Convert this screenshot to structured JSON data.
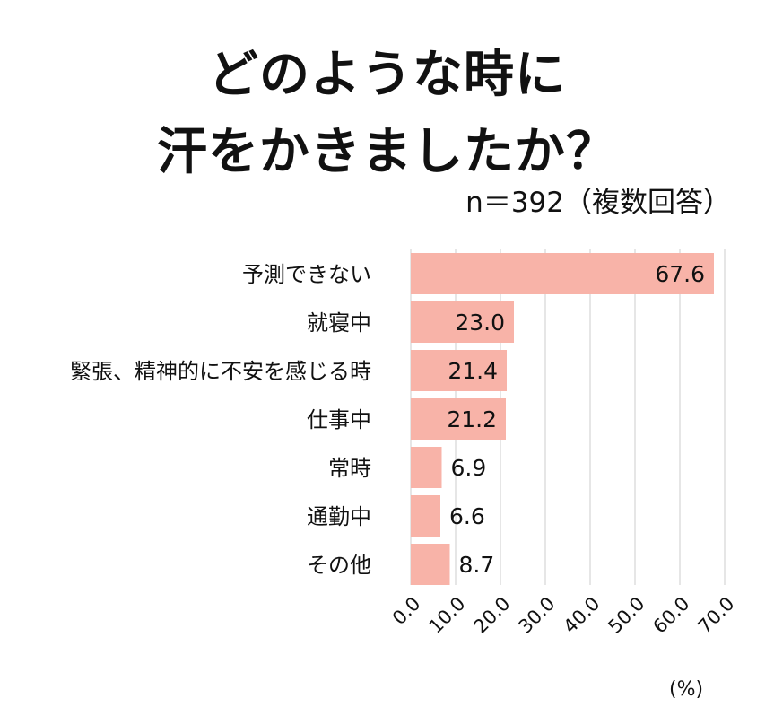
{
  "header": {
    "title_line1": "どのような時に",
    "title_line2": "汗をかきましたか？",
    "subtitle": "n＝392（複数回答）"
  },
  "colors": {
    "bar": "#f8b3a8",
    "grid": "#cccccc",
    "text": "#111111"
  },
  "chart_data": {
    "type": "bar",
    "orientation": "horizontal",
    "categories": [
      "予測できない",
      "就寝中",
      "緊張、精神的に不安を感じる時",
      "仕事中",
      "常時",
      "通勤中",
      "その他"
    ],
    "values": [
      67.6,
      23.0,
      21.4,
      21.2,
      6.9,
      6.6,
      8.7
    ],
    "value_labels": [
      "67.6",
      "23.0",
      "21.4",
      "21.2",
      "6.9",
      "6.6",
      "8.7"
    ],
    "xlim": [
      0,
      70
    ],
    "ticks": [
      "0.0",
      "10.0",
      "20.0",
      "30.0",
      "40.0",
      "50.0",
      "60.0",
      "70.0"
    ],
    "unit": "(%)",
    "grid": true
  }
}
